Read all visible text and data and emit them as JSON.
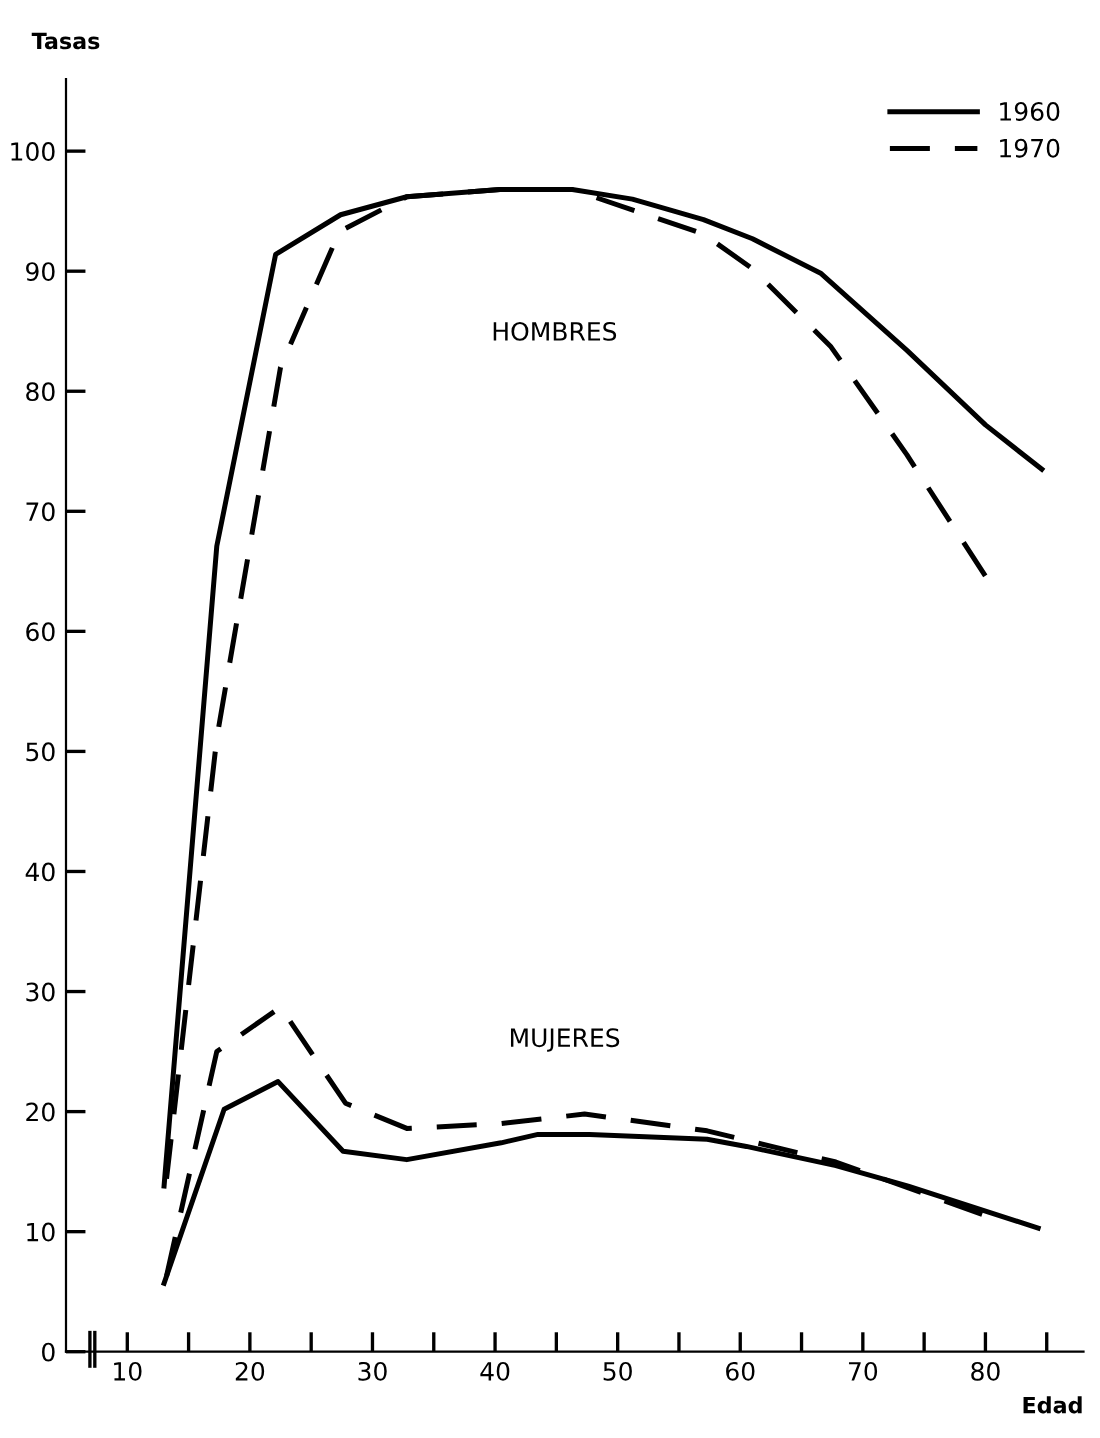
{
  "chart_data": {
    "type": "line",
    "xlabel": "Edad",
    "ylabel": "Tasas",
    "series": [
      {
        "name": "1960",
        "color": "#000000",
        "line_style": "solid",
        "x": [
          13,
          17.3,
          22.1,
          27.4,
          32.8,
          40.4,
          46.3,
          51.2,
          57,
          61,
          66.6,
          73.6,
          80,
          84.6
        ],
        "values": [
          13.8,
          67.1,
          91.4,
          94.7,
          96.2,
          96.8,
          96.8,
          96,
          94.3,
          92.7,
          89.8,
          83.4,
          77.2,
          73.5
        ]
      },
      {
        "name": "1970",
        "color": "#000000",
        "line_style": "dashed",
        "x": [
          13.2,
          17.3,
          22.5,
          27.3,
          32.8,
          40.4,
          46.3,
          57,
          61,
          67.4,
          73.6,
          80
        ],
        "values": [
          14.4,
          51.1,
          82,
          93.3,
          96.2,
          96.8,
          96.8,
          93.1,
          90.2,
          83.7,
          74.7,
          64.6
        ]
      },
      {
        "color": "#000000",
        "line_style": "solid",
        "x": [
          13,
          17.9,
          22.3,
          27.6,
          32.8,
          40.5,
          43.5,
          47.7,
          57.3,
          60.5,
          67.8,
          73.7,
          84.3
        ],
        "values": [
          5.7,
          20.2,
          22.5,
          16.7,
          16,
          17.4,
          18.1,
          18.1,
          17.7,
          17.1,
          15.5,
          13.8,
          10.3
        ]
      },
      {
        "color": "#000000",
        "line_style": "dashed",
        "x": [
          13.2,
          17.3,
          22.5,
          27.8,
          32.8,
          40.5,
          47.3,
          57.3,
          67.8,
          81.2
        ],
        "values": [
          6.3,
          25,
          28.7,
          20.7,
          18.6,
          19,
          19.8,
          18.4,
          15.8,
          10.9
        ]
      }
    ],
    "annotations": [
      "HOMBRES",
      "MUJERES"
    ],
    "xlim": [
      5,
      88
    ],
    "ylim": [
      0,
      106
    ],
    "xticks": [
      10,
      {
        "value": 15,
        "label": null
      },
      20,
      {
        "value": 25,
        "label": null
      },
      30,
      {
        "value": 35,
        "label": null
      },
      40,
      {
        "value": 45,
        "label": null
      },
      50,
      {
        "value": 55,
        "label": null
      },
      60,
      {
        "value": 65,
        "label": null
      },
      70,
      {
        "value": 75,
        "label": null
      },
      80,
      {
        "value": 85,
        "label": null
      }
    ],
    "yticks": [
      0,
      10,
      20,
      30,
      40,
      50,
      60,
      70,
      80,
      90,
      100
    ],
    "legend": "top right",
    "grid": false,
    "marker": "none"
  }
}
